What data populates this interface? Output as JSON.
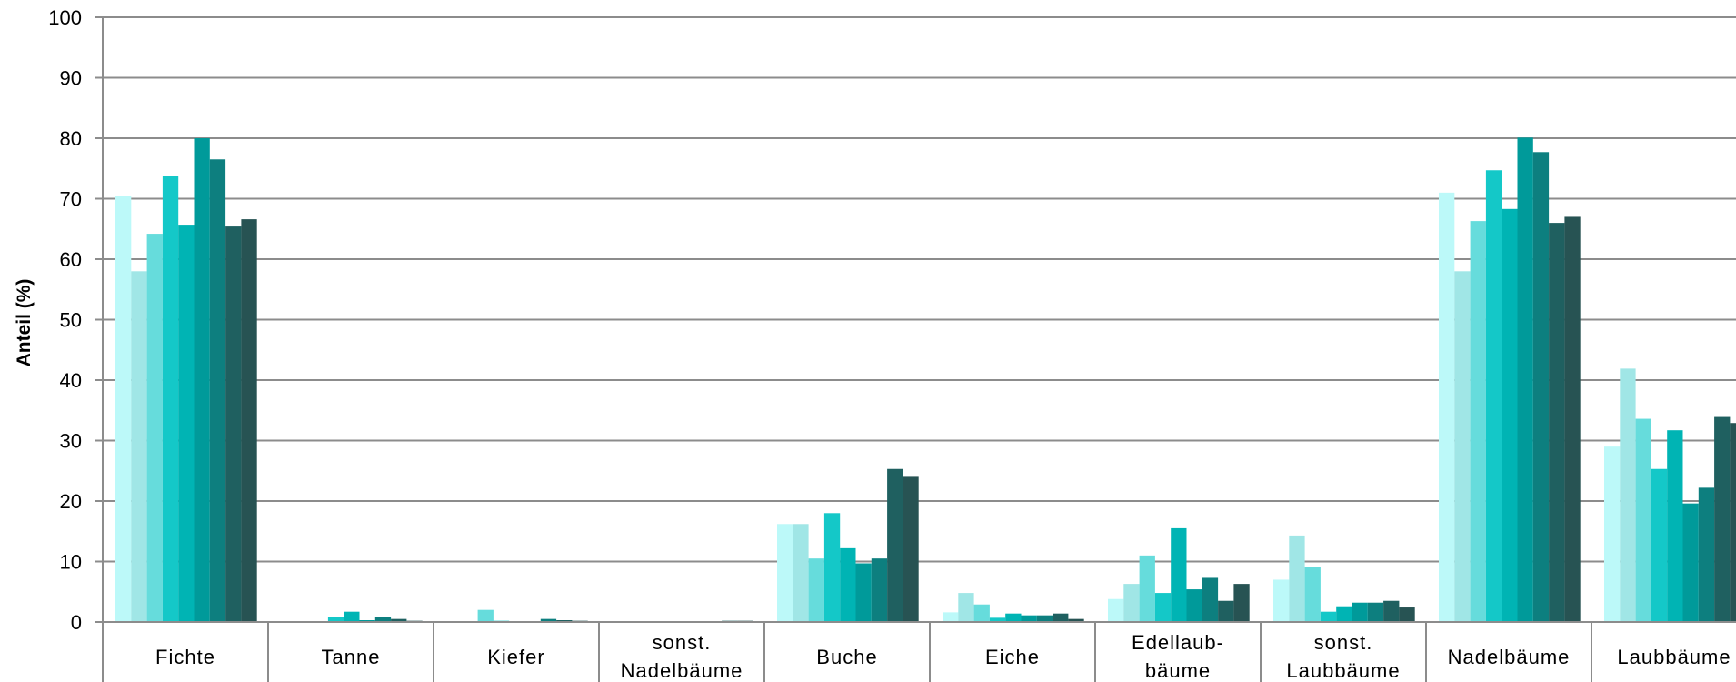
{
  "chart_data": {
    "type": "bar",
    "title": "",
    "xlabel": "",
    "ylabel": "Anteil (%)",
    "ylim": [
      0,
      100
    ],
    "yticks": [
      0,
      10,
      20,
      30,
      40,
      50,
      60,
      70,
      80,
      90,
      100
    ],
    "grid": true,
    "legend": "none",
    "categories": [
      [
        "Fichte"
      ],
      [
        "Tanne"
      ],
      [
        "Kiefer"
      ],
      [
        "sonst.",
        "Nadelbäume"
      ],
      [
        "Buche"
      ],
      [
        "Eiche"
      ],
      [
        "Edellaub-",
        "bäume"
      ],
      [
        "sonst.",
        "Laubbäume"
      ],
      [
        "Nadelbäume"
      ],
      [
        "Laubbäume"
      ]
    ],
    "series_colors": [
      "#bcf9f9",
      "#a0e6e6",
      "#66dcdc",
      "#14c8c8",
      "#00b4b4",
      "#009a9a",
      "#0d7f7f",
      "#1f6060",
      "#275353",
      "#323e3e"
    ],
    "series": [
      {
        "values": [
          70.5,
          0,
          0,
          0,
          16.2,
          1.6,
          3.8,
          7.0,
          71.0,
          29.0
        ]
      },
      {
        "values": [
          58.0,
          0,
          0,
          0,
          16.2,
          4.8,
          6.3,
          14.3,
          58.0,
          41.9
        ]
      },
      {
        "values": [
          64.2,
          0,
          2.0,
          0,
          10.5,
          2.9,
          11.0,
          9.1,
          66.3,
          33.6
        ]
      },
      {
        "values": [
          73.8,
          0.8,
          0.2,
          0,
          18.0,
          0.7,
          4.8,
          1.7,
          74.7,
          25.3
        ]
      },
      {
        "values": [
          65.7,
          1.7,
          0.1,
          0,
          12.2,
          1.4,
          15.5,
          2.6,
          68.3,
          31.7
        ]
      },
      {
        "values": [
          80.0,
          0.3,
          0.1,
          0,
          9.7,
          1.1,
          5.4,
          3.2,
          80.1,
          19.6
        ]
      },
      {
        "values": [
          76.5,
          0.8,
          0.5,
          0.1,
          10.5,
          1.1,
          7.3,
          3.2,
          77.7,
          22.2
        ]
      },
      {
        "values": [
          65.4,
          0.5,
          0.3,
          0.2,
          25.3,
          1.4,
          3.5,
          3.5,
          66.0,
          33.9
        ]
      },
      {
        "values": [
          66.6,
          0.2,
          0.2,
          0.2,
          24.0,
          0.5,
          6.3,
          2.4,
          67.0,
          32.9
        ]
      }
    ]
  }
}
